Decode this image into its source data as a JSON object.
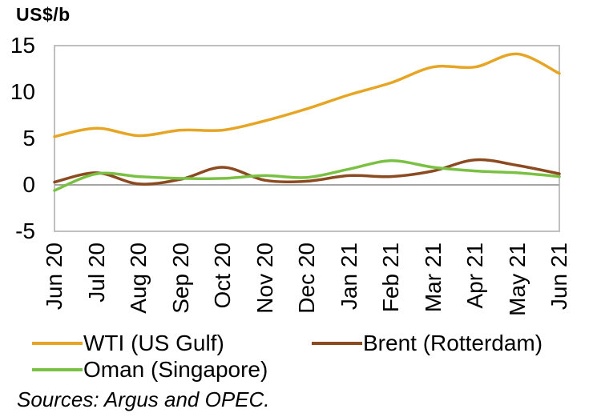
{
  "title": "US$/b",
  "sources_note": "Sources: Argus and OPEC.",
  "colors": {
    "wti": "#E6A524",
    "brent": "#8C4A21",
    "oman": "#7AC143",
    "frame": "#BFBFBF",
    "zero_line": "#A6A6A6",
    "text": "#000000"
  },
  "chart_data": {
    "type": "line",
    "title": "US$/b",
    "line_style": "smooth",
    "categories": [
      "Jun 20",
      "Jul 20",
      "Aug 20",
      "Sep 20",
      "Oct 20",
      "Nov 20",
      "Dec 20",
      "Jan 21",
      "Feb 21",
      "Mar 21",
      "Apr 21",
      "May 21",
      "Jun 21"
    ],
    "series": [
      {
        "name": "WTI (US Gulf)",
        "color": "#E6A524",
        "values": [
          5.2,
          6.1,
          5.3,
          5.9,
          5.9,
          6.9,
          8.2,
          9.7,
          11.0,
          12.7,
          12.7,
          14.1,
          12.0
        ]
      },
      {
        "name": "Brent (Rotterdam)",
        "color": "#8C4A21",
        "values": [
          0.3,
          1.3,
          0.1,
          0.6,
          1.9,
          0.5,
          0.4,
          1.0,
          0.9,
          1.5,
          2.7,
          2.1,
          1.2
        ]
      },
      {
        "name": "Oman (Singapore)",
        "color": "#7AC143",
        "values": [
          -0.6,
          1.2,
          0.9,
          0.7,
          0.7,
          1.0,
          0.8,
          1.7,
          2.6,
          1.9,
          1.5,
          1.3,
          0.9
        ]
      }
    ],
    "ylabel": "US$/b",
    "ylim": [
      -5,
      15
    ],
    "yticks": [
      15,
      10,
      5,
      0,
      -5
    ],
    "x_tick_rotation": -90,
    "grid": "zero-baseline-only",
    "legend_position": "bottom",
    "frame_color": "#BFBFBF",
    "zero_line_color": "#A6A6A6"
  }
}
